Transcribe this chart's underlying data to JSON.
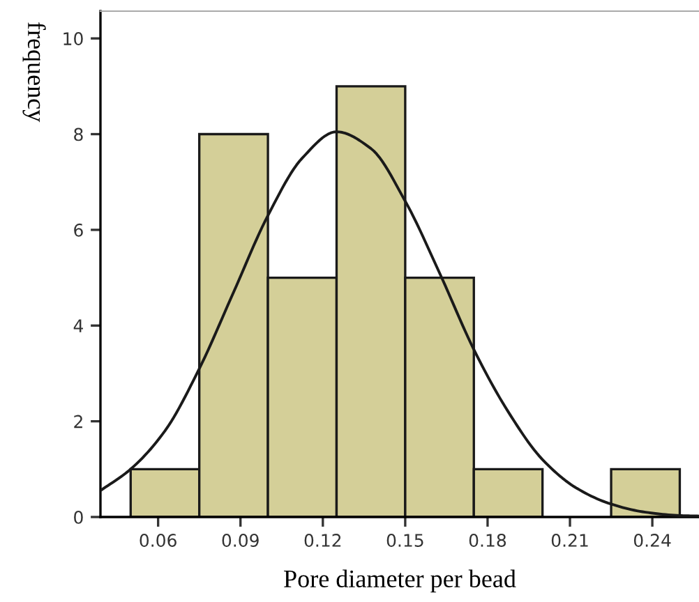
{
  "chart_data": {
    "type": "histogram",
    "xlabel": "Pore diameter per bead",
    "ylabel": "frequency",
    "bins": [
      0.05,
      0.075,
      0.1,
      0.125,
      0.15,
      0.175,
      0.2,
      0.225,
      0.25
    ],
    "values": [
      1,
      8,
      5,
      9,
      5,
      1,
      0,
      1
    ],
    "color": "#d4cf98",
    "series": [
      {
        "type": "line",
        "color": "#1a1a1a",
        "x": [
          0.039,
          0.05,
          0.0625,
          0.075,
          0.0875,
          0.1,
          0.1125,
          0.125,
          0.1375,
          0.15,
          0.1625,
          0.175,
          0.1875,
          0.2,
          0.2125,
          0.225,
          0.2375,
          0.25,
          0.257
        ],
        "values": [
          0.55,
          1.0,
          1.8,
          3.1,
          4.7,
          6.3,
          7.5,
          8.05,
          7.7,
          6.6,
          5.1,
          3.5,
          2.2,
          1.2,
          0.6,
          0.27,
          0.1,
          0.03,
          0.02
        ]
      }
    ],
    "xlim": [
      0.039,
      0.257
    ],
    "ylim": [
      0,
      10.57
    ],
    "xticks": [
      0.06,
      0.09,
      0.12,
      0.15,
      0.18,
      0.21,
      0.24
    ],
    "yticks": [
      0,
      2,
      4,
      6,
      8,
      10
    ],
    "grid": false,
    "legend": false
  }
}
